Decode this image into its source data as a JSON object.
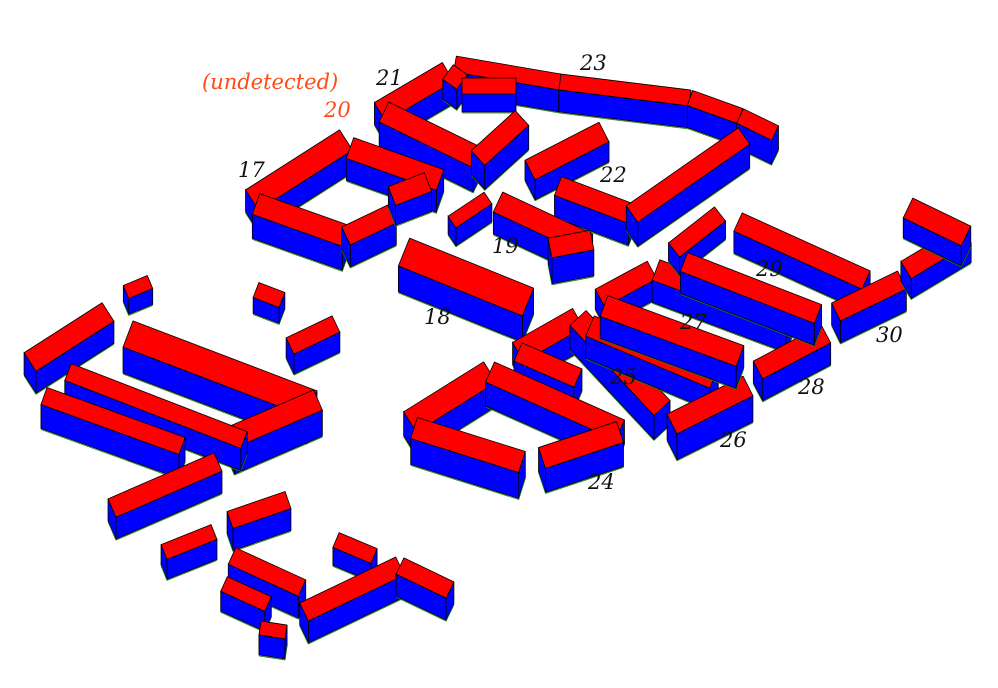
{
  "figure": {
    "colors": {
      "roof": "#ff0000",
      "wall": "#0000ff",
      "edge": "#000000",
      "label": "#111111",
      "highlight": "#ff4a14",
      "ground_trace": "#1a7a1a"
    },
    "undetected_note": "(undetected)",
    "building_labels": [
      {
        "id": "17",
        "text": "17",
        "emphasis": false
      },
      {
        "id": "18",
        "text": "18",
        "emphasis": false
      },
      {
        "id": "19",
        "text": "19",
        "emphasis": false
      },
      {
        "id": "20",
        "text": "20",
        "emphasis": true
      },
      {
        "id": "21",
        "text": "21",
        "emphasis": false
      },
      {
        "id": "22",
        "text": "22",
        "emphasis": false
      },
      {
        "id": "23",
        "text": "23",
        "emphasis": false
      },
      {
        "id": "24",
        "text": "24",
        "emphasis": false
      },
      {
        "id": "25",
        "text": "25",
        "emphasis": false
      },
      {
        "id": "26",
        "text": "26",
        "emphasis": false
      },
      {
        "id": "27",
        "text": "27",
        "emphasis": false
      },
      {
        "id": "28",
        "text": "28",
        "emphasis": false
      },
      {
        "id": "29",
        "text": "29",
        "emphasis": false
      },
      {
        "id": "30",
        "text": "30",
        "emphasis": false
      }
    ]
  }
}
